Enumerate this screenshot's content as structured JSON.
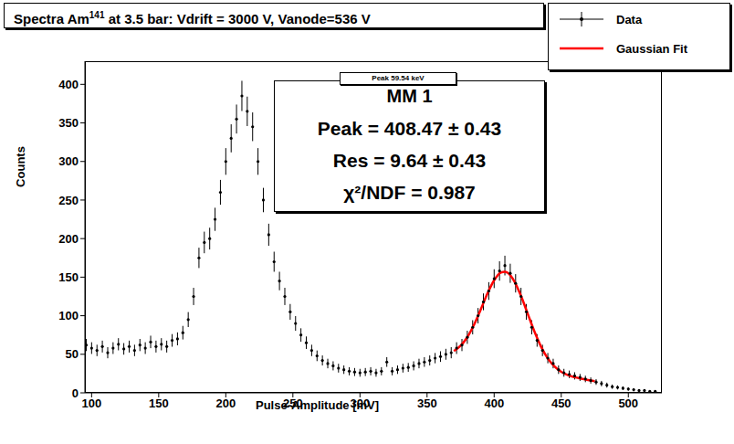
{
  "chart_data": {
    "type": "scatter",
    "title": {
      "text": "Spectra Am",
      "superscript": "141",
      "rest": "  at 3.5  bar: Vdrift = 3000 V, Vanode=536 V"
    },
    "x_label": "Pulse-Amplitude [mV]",
    "y_label": "Counts",
    "xlim": [
      95,
      525
    ],
    "xticks": [
      100,
      150,
      200,
      250,
      300,
      350,
      400,
      450,
      500
    ],
    "ylim": [
      0,
      430
    ],
    "yticks": [
      0,
      50,
      100,
      150,
      200,
      250,
      300,
      350,
      400
    ],
    "grid": false,
    "legend": "upper right",
    "annotations": {
      "tab": "Peak 59.54 keV",
      "lines": [
        "MM 1",
        "Peak = 408.47 ± 0.43",
        "Res = 9.64 ± 0.43",
        "χ²/NDF = 0.987"
      ]
    },
    "series": [
      {
        "name": "Data",
        "type": "scatter",
        "color": "#000000",
        "marker": "circle",
        "x": [
          96,
          100,
          104,
          108,
          112,
          116,
          120,
          124,
          128,
          132,
          136,
          140,
          144,
          148,
          152,
          156,
          160,
          164,
          168,
          172,
          176,
          180,
          184,
          188,
          192,
          196,
          200,
          204,
          208,
          212,
          216,
          220,
          224,
          228,
          232,
          236,
          240,
          244,
          248,
          252,
          256,
          260,
          264,
          268,
          272,
          276,
          280,
          284,
          288,
          292,
          296,
          300,
          304,
          308,
          312,
          316,
          320,
          324,
          328,
          332,
          336,
          340,
          344,
          348,
          352,
          356,
          360,
          364,
          368,
          372,
          376,
          380,
          384,
          388,
          392,
          396,
          400,
          404,
          408,
          412,
          416,
          420,
          424,
          428,
          432,
          436,
          440,
          444,
          448,
          452,
          456,
          460,
          464,
          468,
          472,
          476,
          480,
          484,
          488,
          492,
          496,
          500,
          504,
          508,
          512,
          516,
          520
        ],
        "values": [
          62,
          58,
          55,
          60,
          52,
          58,
          63,
          57,
          60,
          55,
          62,
          58,
          66,
          60,
          63,
          60,
          68,
          70,
          78,
          95,
          125,
          175,
          195,
          200,
          225,
          260,
          300,
          330,
          355,
          385,
          365,
          345,
          300,
          250,
          205,
          170,
          145,
          125,
          105,
          90,
          75,
          65,
          55,
          48,
          42,
          38,
          35,
          32,
          30,
          28,
          27,
          26,
          27,
          28,
          26,
          28,
          40,
          28,
          30,
          32,
          33,
          35,
          38,
          40,
          42,
          45,
          47,
          50,
          52,
          58,
          62,
          72,
          85,
          100,
          118,
          132,
          148,
          158,
          165,
          155,
          142,
          125,
          105,
          85,
          68,
          55,
          45,
          38,
          30,
          26,
          24,
          22,
          20,
          18,
          16,
          14,
          12,
          10,
          8,
          7,
          6,
          5,
          4,
          3,
          3,
          2,
          2
        ],
        "errors": [
          7.9,
          7.6,
          7.4,
          7.7,
          7.2,
          7.6,
          7.9,
          7.5,
          7.7,
          7.4,
          7.9,
          7.6,
          8.1,
          7.7,
          7.9,
          7.7,
          8.2,
          8.4,
          8.8,
          9.7,
          11.2,
          13.2,
          14.0,
          14.1,
          15.0,
          16.1,
          17.3,
          18.2,
          18.8,
          19.6,
          19.1,
          18.6,
          17.3,
          15.8,
          14.3,
          13.0,
          12.0,
          11.2,
          10.2,
          9.5,
          8.7,
          8.1,
          7.4,
          6.9,
          6.5,
          6.2,
          5.9,
          5.7,
          5.5,
          5.3,
          5.2,
          5.1,
          5.2,
          5.3,
          5.1,
          5.3,
          6.3,
          5.3,
          5.5,
          5.7,
          5.7,
          5.9,
          6.2,
          6.3,
          6.5,
          6.7,
          6.9,
          7.1,
          7.2,
          7.6,
          7.9,
          8.5,
          9.2,
          10.0,
          10.9,
          11.5,
          12.2,
          12.6,
          12.8,
          12.4,
          11.9,
          11.2,
          10.2,
          9.2,
          8.2,
          7.4,
          6.7,
          6.2,
          5.5,
          5.1,
          4.9,
          4.7,
          4.5,
          4.2,
          4.0,
          3.7,
          3.5,
          3.2,
          2.8,
          2.6,
          2.4,
          2.2,
          2.0,
          1.7,
          1.7,
          1.4,
          1.4
        ]
      },
      {
        "name": "Gaussian Fit",
        "type": "line",
        "color": "#ff0000",
        "line_style": "solid",
        "x": [
          370,
          375,
          380,
          385,
          390,
          395,
          400,
          405,
          408,
          410,
          415,
          420,
          425,
          430,
          435,
          440,
          445,
          450,
          455,
          460,
          465,
          470,
          475
        ],
        "values": [
          54.2,
          61.1,
          72.3,
          88.3,
          108.1,
          128.8,
          146.0,
          156.0,
          157.1,
          155.7,
          144.8,
          125.8,
          102.6,
          79.6,
          59.7,
          44.6,
          34.2,
          27.3,
          23.0,
          20.3,
          18.3,
          16.5,
          15.0
        ]
      }
    ]
  }
}
